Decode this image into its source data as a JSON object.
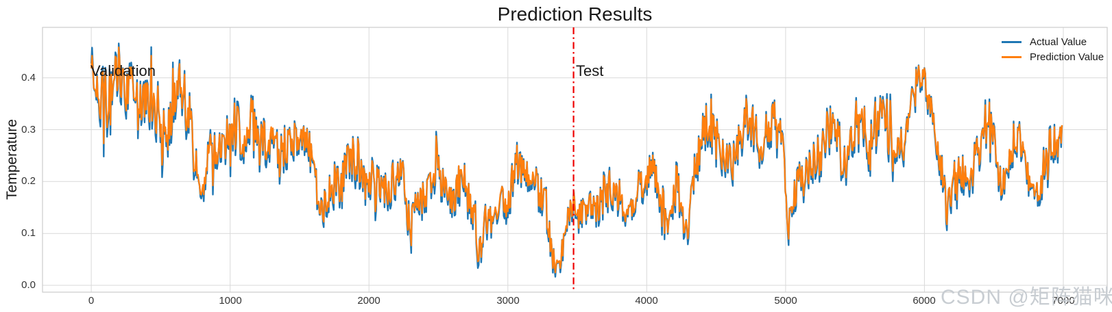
{
  "title": "Prediction Results",
  "watermark": "CSDN @矩阵猫咪",
  "chart_data": {
    "type": "line",
    "title": "Prediction Results",
    "xlabel": "",
    "ylabel": "Temperature",
    "xlim": [
      -351,
      7316
    ],
    "ylim": [
      -0.0132,
      0.4972
    ],
    "xticks": [
      0,
      1000,
      2000,
      3000,
      4000,
      5000,
      6000,
      7000
    ],
    "yticks": [
      0.0,
      0.1,
      0.2,
      0.3,
      0.4
    ],
    "grid": true,
    "grid_color": "#d9d9d9",
    "spine_color": "#cccccc",
    "legend_position": "upper right",
    "n_points": 6990,
    "step": 6,
    "series": [
      {
        "name": "Actual Value",
        "color": "#1f77b4"
      },
      {
        "name": "Prediction Value",
        "color": "#ff7f0e"
      }
    ],
    "split_line": {
      "x": 3473,
      "color": "#ee0000",
      "style": "dashdot"
    },
    "annotations": [
      {
        "text": "Validation",
        "x": 0,
        "y": 0.413
      },
      {
        "text": "Test",
        "x": 3495,
        "y": 0.413
      }
    ],
    "envelope": [
      [
        0,
        0.36,
        0.08
      ],
      [
        50,
        0.37,
        0.09
      ],
      [
        100,
        0.35,
        0.07
      ],
      [
        150,
        0.37,
        0.08
      ],
      [
        200,
        0.41,
        0.06
      ],
      [
        250,
        0.38,
        0.06
      ],
      [
        300,
        0.36,
        0.07
      ],
      [
        350,
        0.34,
        0.06
      ],
      [
        400,
        0.35,
        0.07
      ],
      [
        450,
        0.36,
        0.07
      ],
      [
        500,
        0.31,
        0.07
      ],
      [
        550,
        0.29,
        0.06
      ],
      [
        600,
        0.37,
        0.06
      ],
      [
        650,
        0.38,
        0.06
      ],
      [
        700,
        0.33,
        0.07
      ],
      [
        730,
        0.28,
        0.05
      ],
      [
        780,
        0.17,
        0.04
      ],
      [
        820,
        0.22,
        0.05
      ],
      [
        870,
        0.24,
        0.06
      ],
      [
        920,
        0.26,
        0.05
      ],
      [
        970,
        0.27,
        0.06
      ],
      [
        1020,
        0.3,
        0.05
      ],
      [
        1060,
        0.28,
        0.07
      ],
      [
        1100,
        0.28,
        0.06
      ],
      [
        1150,
        0.32,
        0.06
      ],
      [
        1200,
        0.26,
        0.05
      ],
      [
        1250,
        0.28,
        0.07
      ],
      [
        1300,
        0.3,
        0.05
      ],
      [
        1350,
        0.24,
        0.05
      ],
      [
        1400,
        0.27,
        0.05
      ],
      [
        1450,
        0.27,
        0.04
      ],
      [
        1500,
        0.28,
        0.03
      ],
      [
        1550,
        0.28,
        0.03
      ],
      [
        1600,
        0.24,
        0.04
      ],
      [
        1650,
        0.12,
        0.05
      ],
      [
        1700,
        0.17,
        0.04
      ],
      [
        1750,
        0.19,
        0.05
      ],
      [
        1800,
        0.19,
        0.05
      ],
      [
        1860,
        0.25,
        0.05
      ],
      [
        1920,
        0.25,
        0.05
      ],
      [
        1960,
        0.19,
        0.04
      ],
      [
        2000,
        0.2,
        0.04
      ],
      [
        2050,
        0.19,
        0.05
      ],
      [
        2100,
        0.17,
        0.04
      ],
      [
        2150,
        0.19,
        0.05
      ],
      [
        2200,
        0.2,
        0.05
      ],
      [
        2240,
        0.22,
        0.05
      ],
      [
        2290,
        0.1,
        0.04
      ],
      [
        2330,
        0.14,
        0.04
      ],
      [
        2380,
        0.17,
        0.04
      ],
      [
        2430,
        0.18,
        0.04
      ],
      [
        2475,
        0.24,
        0.05
      ],
      [
        2520,
        0.2,
        0.04
      ],
      [
        2570,
        0.18,
        0.04
      ],
      [
        2610,
        0.15,
        0.03
      ],
      [
        2650,
        0.22,
        0.05
      ],
      [
        2700,
        0.19,
        0.04
      ],
      [
        2745,
        0.15,
        0.04
      ],
      [
        2795,
        0.055,
        0.03
      ],
      [
        2845,
        0.13,
        0.04
      ],
      [
        2895,
        0.12,
        0.03
      ],
      [
        2950,
        0.17,
        0.04
      ],
      [
        3010,
        0.17,
        0.04
      ],
      [
        3060,
        0.23,
        0.05
      ],
      [
        3110,
        0.21,
        0.04
      ],
      [
        3170,
        0.22,
        0.04
      ],
      [
        3220,
        0.18,
        0.04
      ],
      [
        3270,
        0.16,
        0.04
      ],
      [
        3320,
        0.05,
        0.03
      ],
      [
        3365,
        0.025,
        0.02
      ],
      [
        3400,
        0.08,
        0.03
      ],
      [
        3430,
        0.12,
        0.03
      ],
      [
        3470,
        0.16,
        0.04
      ],
      [
        3510,
        0.13,
        0.03
      ],
      [
        3550,
        0.135,
        0.035
      ],
      [
        3600,
        0.14,
        0.04
      ],
      [
        3650,
        0.15,
        0.04
      ],
      [
        3700,
        0.17,
        0.04
      ],
      [
        3755,
        0.18,
        0.04
      ],
      [
        3810,
        0.17,
        0.04
      ],
      [
        3855,
        0.13,
        0.04
      ],
      [
        3900,
        0.145,
        0.04
      ],
      [
        3950,
        0.19,
        0.05
      ],
      [
        4000,
        0.21,
        0.05
      ],
      [
        4060,
        0.21,
        0.05
      ],
      [
        4110,
        0.16,
        0.05
      ],
      [
        4150,
        0.09,
        0.03
      ],
      [
        4200,
        0.19,
        0.06
      ],
      [
        4250,
        0.16,
        0.06
      ],
      [
        4285,
        0.095,
        0.035
      ],
      [
        4330,
        0.18,
        0.05
      ],
      [
        4380,
        0.26,
        0.05
      ],
      [
        4430,
        0.31,
        0.045
      ],
      [
        4480,
        0.3,
        0.05
      ],
      [
        4530,
        0.26,
        0.04
      ],
      [
        4580,
        0.24,
        0.04
      ],
      [
        4630,
        0.23,
        0.05
      ],
      [
        4680,
        0.3,
        0.06
      ],
      [
        4730,
        0.32,
        0.05
      ],
      [
        4780,
        0.3,
        0.05
      ],
      [
        4830,
        0.25,
        0.04
      ],
      [
        4880,
        0.31,
        0.06
      ],
      [
        4940,
        0.32,
        0.05
      ],
      [
        4985,
        0.24,
        0.05
      ],
      [
        5010,
        0.1,
        0.04
      ],
      [
        5060,
        0.17,
        0.04
      ],
      [
        5110,
        0.2,
        0.05
      ],
      [
        5160,
        0.21,
        0.05
      ],
      [
        5210,
        0.24,
        0.05
      ],
      [
        5260,
        0.25,
        0.05
      ],
      [
        5310,
        0.3,
        0.06
      ],
      [
        5360,
        0.3,
        0.05
      ],
      [
        5410,
        0.22,
        0.06
      ],
      [
        5460,
        0.27,
        0.05
      ],
      [
        5510,
        0.31,
        0.06
      ],
      [
        5560,
        0.33,
        0.07
      ],
      [
        5610,
        0.25,
        0.06
      ],
      [
        5670,
        0.33,
        0.07
      ],
      [
        5720,
        0.3,
        0.05
      ],
      [
        5770,
        0.28,
        0.06
      ],
      [
        5820,
        0.26,
        0.05
      ],
      [
        5870,
        0.28,
        0.05
      ],
      [
        5920,
        0.36,
        0.05
      ],
      [
        5960,
        0.4,
        0.03
      ],
      [
        6000,
        0.395,
        0.03
      ],
      [
        6040,
        0.34,
        0.04
      ],
      [
        6090,
        0.27,
        0.04
      ],
      [
        6130,
        0.21,
        0.04
      ],
      [
        6160,
        0.14,
        0.03
      ],
      [
        6200,
        0.2,
        0.04
      ],
      [
        6250,
        0.22,
        0.05
      ],
      [
        6300,
        0.21,
        0.04
      ],
      [
        6350,
        0.23,
        0.05
      ],
      [
        6410,
        0.27,
        0.05
      ],
      [
        6470,
        0.31,
        0.05
      ],
      [
        6520,
        0.24,
        0.04
      ],
      [
        6560,
        0.18,
        0.04
      ],
      [
        6610,
        0.25,
        0.05
      ],
      [
        6660,
        0.28,
        0.05
      ],
      [
        6710,
        0.26,
        0.04
      ],
      [
        6760,
        0.19,
        0.04
      ],
      [
        6800,
        0.17,
        0.04
      ],
      [
        6850,
        0.21,
        0.05
      ],
      [
        6905,
        0.26,
        0.05
      ],
      [
        6950,
        0.27,
        0.04
      ],
      [
        6990,
        0.29,
        0.03
      ]
    ]
  }
}
